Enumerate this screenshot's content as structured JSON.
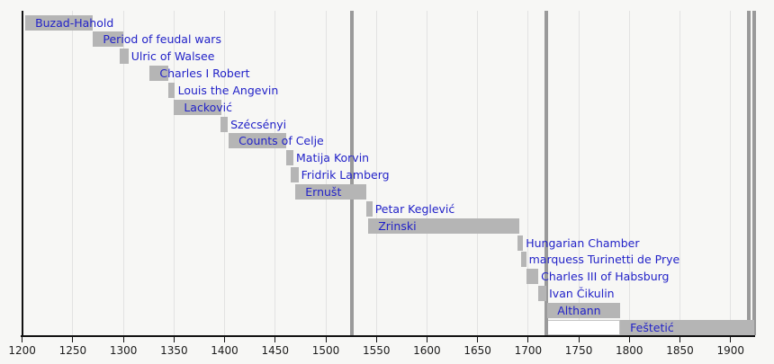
{
  "chart_data": {
    "type": "timeline",
    "x_axis": {
      "start_year": 1200,
      "end_year": 1923,
      "tick_step": 50,
      "tick_years": [
        1200,
        1250,
        1300,
        1350,
        1400,
        1450,
        1500,
        1550,
        1600,
        1650,
        1700,
        1750,
        1800,
        1850,
        1900
      ],
      "grid": true
    },
    "bars": [
      {
        "label": "Buzad-Hahold",
        "from": 1203,
        "till": 1270,
        "label_pos": "inside"
      },
      {
        "label": "Period of feudal wars",
        "from": 1270,
        "till": 1300,
        "label_pos": "inside"
      },
      {
        "label": "Ulric of Walsee",
        "from": 1296,
        "till": 1305,
        "label_pos": "after"
      },
      {
        "label": "Charles I Robert",
        "from": 1326,
        "till": 1344,
        "label_pos": "inside"
      },
      {
        "label": "Louis the Angevin",
        "from": 1344,
        "till": 1351,
        "label_pos": "inside"
      },
      {
        "label": "Lacković",
        "from": 1350,
        "till": 1397,
        "label_pos": "inside"
      },
      {
        "label": "Szécsényi",
        "from": 1396,
        "till": 1403,
        "label_pos": "inside"
      },
      {
        "label": "Counts of Celje",
        "from": 1404,
        "till": 1461,
        "label_pos": "inside"
      },
      {
        "label": "Matija Korvin",
        "from": 1461,
        "till": 1468,
        "label_pos": "after"
      },
      {
        "label": "Fridrik Lamberg",
        "from": 1465,
        "till": 1473,
        "label_pos": "after"
      },
      {
        "label": "Ernušt",
        "from": 1470,
        "till": 1540,
        "label_pos": "inside"
      },
      {
        "label": "Petar Keglević",
        "from": 1540,
        "till": 1546,
        "label_pos": "after"
      },
      {
        "label": "Zrinski",
        "from": 1542,
        "till": 1691,
        "label_pos": "inside"
      },
      {
        "label": "Hungarian Chamber",
        "from": 1689,
        "till": 1695,
        "label_pos": "after"
      },
      {
        "label": "marquess Turinetti de Prye",
        "from": 1693,
        "till": 1698,
        "label_pos": "after"
      },
      {
        "label": "Charles III of Habsburg",
        "from": 1698,
        "till": 1710,
        "label_pos": "after"
      },
      {
        "label": "Ivan Čikulin",
        "from": 1710,
        "till": 1718,
        "label_pos": "after"
      },
      {
        "label": "Althann",
        "from": 1719,
        "till": 1791,
        "label_pos": "inside"
      },
      {
        "label": "Feštetić",
        "from": 1791,
        "till": 1923,
        "label_pos": "inside"
      }
    ],
    "event_lines_years": [
      1526,
      1718,
      1918,
      1923
    ],
    "white_segment": {
      "row_label": "Feštetić",
      "from": 1718,
      "till": 1791
    },
    "colors": {
      "bar_fill": "#b5b5b5",
      "bar_label": "#2222c8",
      "event_line": "#9a9a9a",
      "gridline": "#e2e2e2",
      "axis": "#111111",
      "background": "#f7f7f5",
      "white_segment_fill": "#ffffff"
    },
    "legend": false
  }
}
